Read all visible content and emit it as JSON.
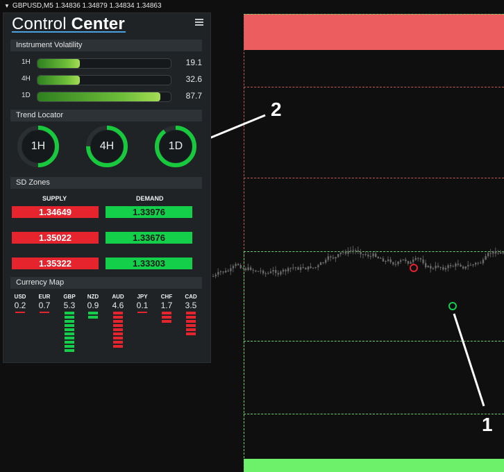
{
  "titlebar": {
    "text": "GBPUSD,M5  1.34836 1.34879 1.34834 1.34863"
  },
  "panel": {
    "brand_light": "Control ",
    "brand_bold": "Center",
    "volatility": {
      "title": "Instrument Volatility",
      "rows": [
        {
          "label": "1H",
          "value": "19.1",
          "level": 0.32
        },
        {
          "label": "4H",
          "value": "32.6",
          "level": 0.32
        },
        {
          "label": "1D",
          "value": "87.7",
          "level": 0.92
        }
      ]
    },
    "trend": {
      "title": "Trend Locator",
      "gauges": [
        {
          "label": "1H",
          "level": 0.5
        },
        {
          "label": "4H",
          "level": 0.75
        },
        {
          "label": "1D",
          "level": 0.9
        }
      ]
    },
    "sd_zones": {
      "title": "SD Zones",
      "supply_label": "SUPPLY",
      "demand_label": "DEMAND",
      "supply": [
        "1.34649",
        "1.35022",
        "1.35322"
      ],
      "demand": [
        "1.33976",
        "1.33676",
        "1.33303"
      ]
    },
    "currency_map": {
      "title": "Currency Map",
      "currencies": [
        {
          "code": "USD",
          "value": "0.2",
          "color": "#e5242e",
          "bars": 1
        },
        {
          "code": "EUR",
          "value": "0.7",
          "color": "#e5242e",
          "bars": 1
        },
        {
          "code": "GBP",
          "value": "5.3",
          "color": "#14cf4a",
          "bars": 10
        },
        {
          "code": "NZD",
          "value": "0.9",
          "color": "#14cf4a",
          "bars": 2
        },
        {
          "code": "AUD",
          "value": "4.6",
          "color": "#e5242e",
          "bars": 9
        },
        {
          "code": "JPY",
          "value": "0.1",
          "color": "#e5242e",
          "bars": 1
        },
        {
          "code": "CHF",
          "value": "1.7",
          "color": "#e5242e",
          "bars": 3
        },
        {
          "code": "CAD",
          "value": "3.5",
          "color": "#e5242e",
          "bars": 6
        }
      ]
    }
  },
  "annotations": {
    "label_1": "1",
    "label_2": "2"
  },
  "colors": {
    "supply_zone": "#ec5d5f",
    "demand_zone": "#6df06a",
    "accent": "#4aa3e0"
  }
}
